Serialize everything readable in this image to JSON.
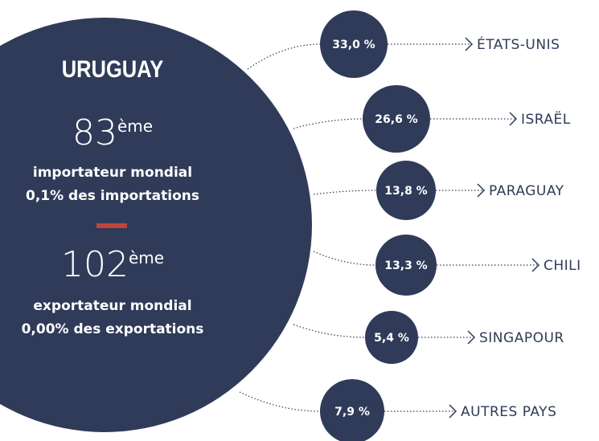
{
  "title": "URUGUAY",
  "import": {
    "rank": 83,
    "suffix": "ème",
    "line1": "importateur mondial",
    "line2": "0,1% des importations"
  },
  "export": {
    "rank": 102,
    "suffix": "ème",
    "line1": "exportateur mondial",
    "line2": "0,00% des exportations"
  },
  "partners": [
    {
      "share": "33,0 %",
      "country": "ÉTATS-UNIS"
    },
    {
      "share": "26,6 %",
      "country": "ISRAËL"
    },
    {
      "share": "13,8 %",
      "country": "PARAGUAY"
    },
    {
      "share": "13,3 %",
      "country": "CHILI"
    },
    {
      "share": "5,4 %",
      "country": "SINGAPOUR"
    },
    {
      "share": "7,9 %",
      "country": "AUTRES PAYS"
    }
  ]
}
